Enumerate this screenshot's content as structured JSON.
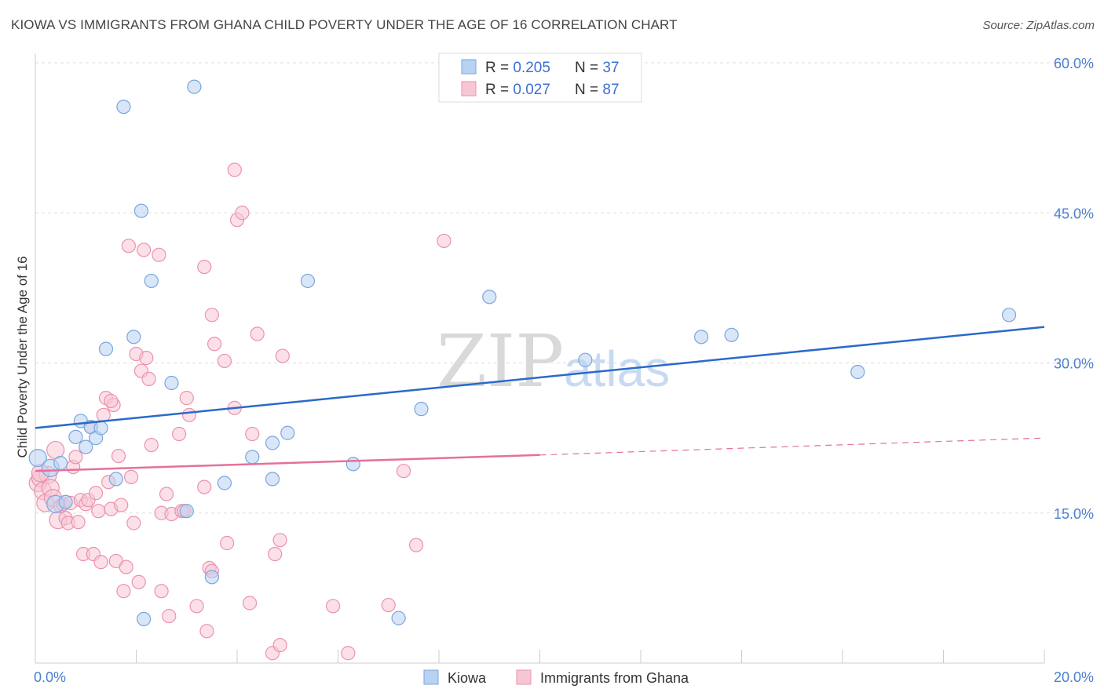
{
  "header": {
    "title": "KIOWA VS IMMIGRANTS FROM GHANA CHILD POVERTY UNDER THE AGE OF 16 CORRELATION CHART",
    "source": "Source: ZipAtlas.com"
  },
  "watermark": {
    "zip": "ZIP",
    "atlas": "atlas"
  },
  "colors": {
    "kiowa_fill": "#b8d2f2",
    "kiowa_stroke": "#7aa6dd",
    "kiowa_line": "#2a6ac8",
    "ghana_fill": "#f7c6d5",
    "ghana_stroke": "#eb92ad",
    "ghana_line": "#e5709a",
    "tick": "#4a7fd4",
    "grid": "#dddddd"
  },
  "chart_data": {
    "type": "scatter",
    "title": "KIOWA VS IMMIGRANTS FROM GHANA CHILD POVERTY UNDER THE AGE OF 16 CORRELATION CHART",
    "xlabel": "",
    "ylabel": "Child Poverty Under the Age of 16",
    "xlim": [
      0,
      20
    ],
    "ylim": [
      0,
      60
    ],
    "x_ticks": [
      "0.0%",
      "20.0%"
    ],
    "y_ticks": [
      {
        "value": 15,
        "label": "15.0%"
      },
      {
        "value": 30,
        "label": "30.0%"
      },
      {
        "value": 45,
        "label": "45.0%"
      },
      {
        "value": 60,
        "label": "60.0%"
      }
    ],
    "grid": true,
    "legend_placement": "top-center",
    "stats_legend": [
      {
        "r_label": "R = ",
        "r_value": "0.205",
        "n_label": "N = ",
        "n_value": "37"
      },
      {
        "r_label": "R = ",
        "r_value": "0.027",
        "n_label": "N = ",
        "n_value": "87"
      }
    ],
    "series": [
      {
        "name": "Kiowa",
        "points": [
          [
            0.05,
            20.5
          ],
          [
            0.3,
            19.5
          ],
          [
            0.5,
            20.0
          ],
          [
            0.9,
            24.2
          ],
          [
            0.8,
            22.6
          ],
          [
            1.0,
            21.6
          ],
          [
            1.1,
            23.6
          ],
          [
            1.2,
            22.5
          ],
          [
            1.4,
            31.4
          ],
          [
            1.6,
            18.4
          ],
          [
            1.75,
            55.6
          ],
          [
            1.95,
            32.6
          ],
          [
            2.1,
            45.2
          ],
          [
            2.3,
            38.2
          ],
          [
            2.7,
            28.0
          ],
          [
            3.0,
            15.2
          ],
          [
            3.15,
            57.6
          ],
          [
            3.5,
            8.6
          ],
          [
            3.75,
            18.0
          ],
          [
            4.3,
            20.6
          ],
          [
            4.7,
            18.4
          ],
          [
            4.7,
            22.0
          ],
          [
            5.0,
            23.0
          ],
          [
            5.4,
            38.2
          ],
          [
            6.3,
            19.9
          ],
          [
            7.2,
            4.5
          ],
          [
            7.65,
            25.4
          ],
          [
            9.0,
            36.6
          ],
          [
            10.9,
            30.3
          ],
          [
            13.2,
            32.6
          ],
          [
            13.8,
            32.8
          ],
          [
            16.3,
            29.1
          ],
          [
            19.3,
            34.8
          ],
          [
            2.15,
            4.4
          ],
          [
            0.4,
            15.9
          ],
          [
            1.3,
            23.5
          ],
          [
            0.6,
            16.1
          ]
        ],
        "trend": {
          "x": [
            0,
            20
          ],
          "y": [
            23.5,
            33.6
          ]
        }
      },
      {
        "name": "Immigrants from Ghana",
        "points": [
          [
            0.05,
            18.0
          ],
          [
            0.1,
            18.5
          ],
          [
            0.15,
            17.2
          ],
          [
            0.2,
            16.0
          ],
          [
            0.25,
            18.8
          ],
          [
            0.3,
            17.5
          ],
          [
            0.35,
            16.5
          ],
          [
            0.4,
            21.3
          ],
          [
            0.45,
            14.3
          ],
          [
            0.5,
            15.7
          ],
          [
            0.55,
            15.9
          ],
          [
            0.6,
            14.5
          ],
          [
            0.65,
            14.0
          ],
          [
            0.7,
            16.0
          ],
          [
            0.75,
            19.6
          ],
          [
            0.8,
            20.6
          ],
          [
            0.85,
            14.1
          ],
          [
            0.9,
            16.3
          ],
          [
            0.95,
            10.9
          ],
          [
            1.0,
            15.9
          ],
          [
            1.05,
            16.3
          ],
          [
            1.1,
            23.6
          ],
          [
            1.15,
            10.9
          ],
          [
            1.2,
            17.0
          ],
          [
            1.25,
            15.2
          ],
          [
            1.3,
            10.1
          ],
          [
            1.35,
            24.8
          ],
          [
            1.4,
            26.5
          ],
          [
            1.45,
            18.1
          ],
          [
            1.5,
            15.4
          ],
          [
            1.55,
            25.8
          ],
          [
            1.6,
            10.2
          ],
          [
            1.65,
            20.7
          ],
          [
            1.7,
            15.8
          ],
          [
            1.75,
            7.2
          ],
          [
            1.8,
            9.6
          ],
          [
            1.85,
            41.7
          ],
          [
            1.9,
            18.6
          ],
          [
            1.95,
            14.0
          ],
          [
            2.0,
            30.9
          ],
          [
            2.05,
            8.1
          ],
          [
            2.1,
            29.2
          ],
          [
            2.15,
            41.3
          ],
          [
            2.2,
            30.5
          ],
          [
            2.25,
            28.4
          ],
          [
            2.3,
            21.8
          ],
          [
            2.45,
            40.8
          ],
          [
            2.5,
            15.0
          ],
          [
            2.5,
            7.2
          ],
          [
            2.6,
            16.9
          ],
          [
            2.65,
            4.7
          ],
          [
            2.7,
            14.9
          ],
          [
            2.85,
            22.9
          ],
          [
            2.9,
            15.2
          ],
          [
            2.95,
            15.2
          ],
          [
            3.0,
            26.5
          ],
          [
            3.05,
            24.8
          ],
          [
            3.2,
            5.7
          ],
          [
            3.35,
            17.6
          ],
          [
            3.35,
            39.6
          ],
          [
            3.4,
            3.2
          ],
          [
            3.45,
            9.5
          ],
          [
            3.5,
            34.8
          ],
          [
            3.55,
            31.9
          ],
          [
            3.5,
            9.2
          ],
          [
            3.75,
            30.2
          ],
          [
            3.8,
            12.0
          ],
          [
            3.95,
            49.3
          ],
          [
            3.95,
            25.5
          ],
          [
            4.0,
            44.3
          ],
          [
            4.1,
            45.0
          ],
          [
            4.25,
            6.0
          ],
          [
            4.3,
            22.9
          ],
          [
            4.4,
            32.9
          ],
          [
            4.7,
            1.0
          ],
          [
            4.75,
            10.9
          ],
          [
            4.85,
            12.3
          ],
          [
            4.9,
            30.7
          ],
          [
            4.85,
            1.8
          ],
          [
            5.9,
            5.7
          ],
          [
            6.2,
            1.0
          ],
          [
            7.0,
            5.8
          ],
          [
            7.3,
            19.2
          ],
          [
            7.55,
            11.8
          ],
          [
            8.1,
            42.2
          ],
          [
            1.5,
            26.2
          ],
          [
            0.1,
            19.0
          ]
        ],
        "trend": {
          "x": [
            0,
            10
          ],
          "y": [
            19.2,
            20.8
          ]
        },
        "trend_extension": {
          "x": [
            10,
            20
          ],
          "y": [
            20.8,
            22.5
          ]
        }
      }
    ]
  }
}
